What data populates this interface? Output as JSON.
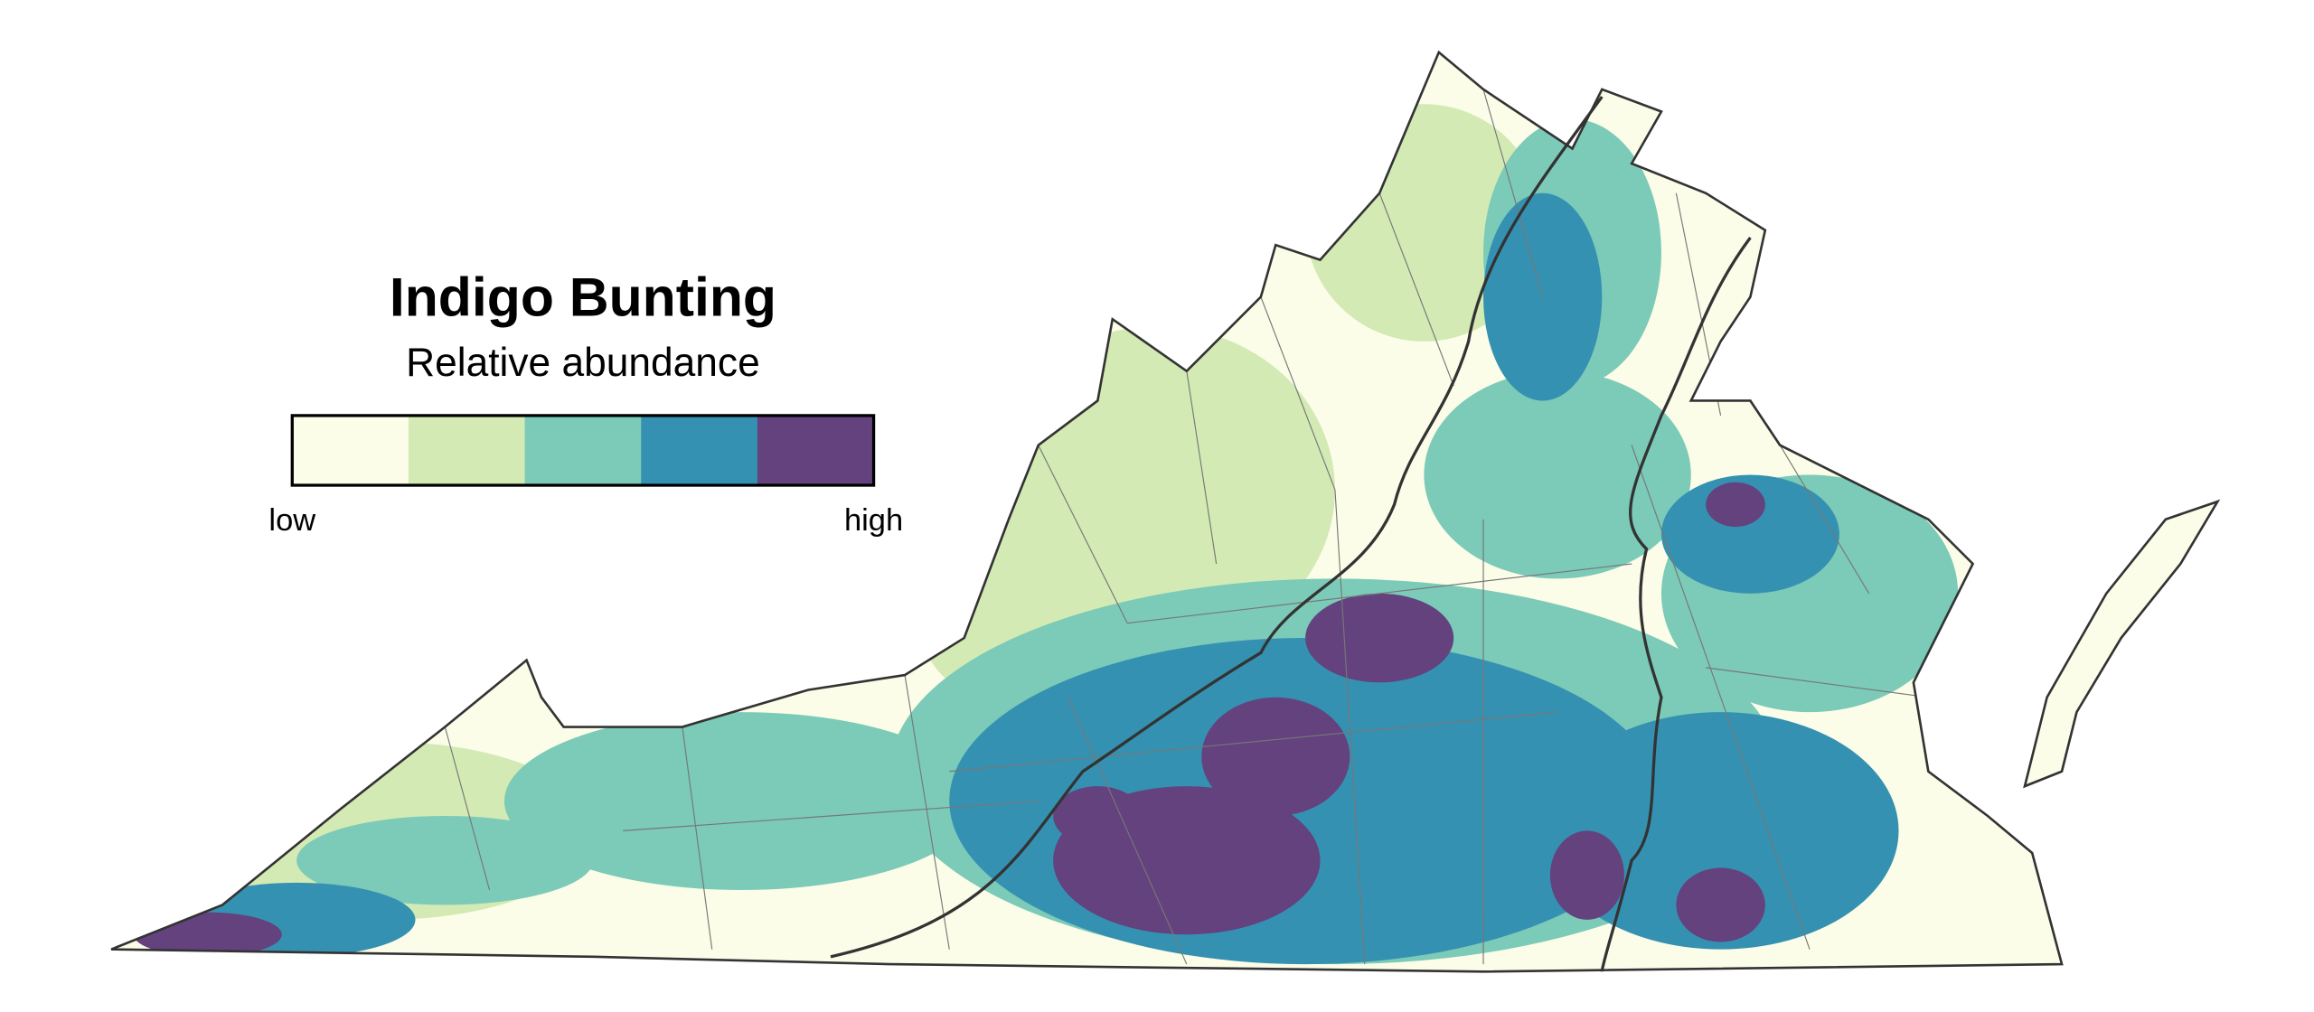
{
  "title": "Indigo Bunting",
  "subtitle": "Relative abundance",
  "legend": {
    "colors": [
      "#fbfde8",
      "#d3eab4",
      "#7ccab8",
      "#3591b1",
      "#63427e"
    ],
    "low_label": "low",
    "high_label": "high"
  }
}
